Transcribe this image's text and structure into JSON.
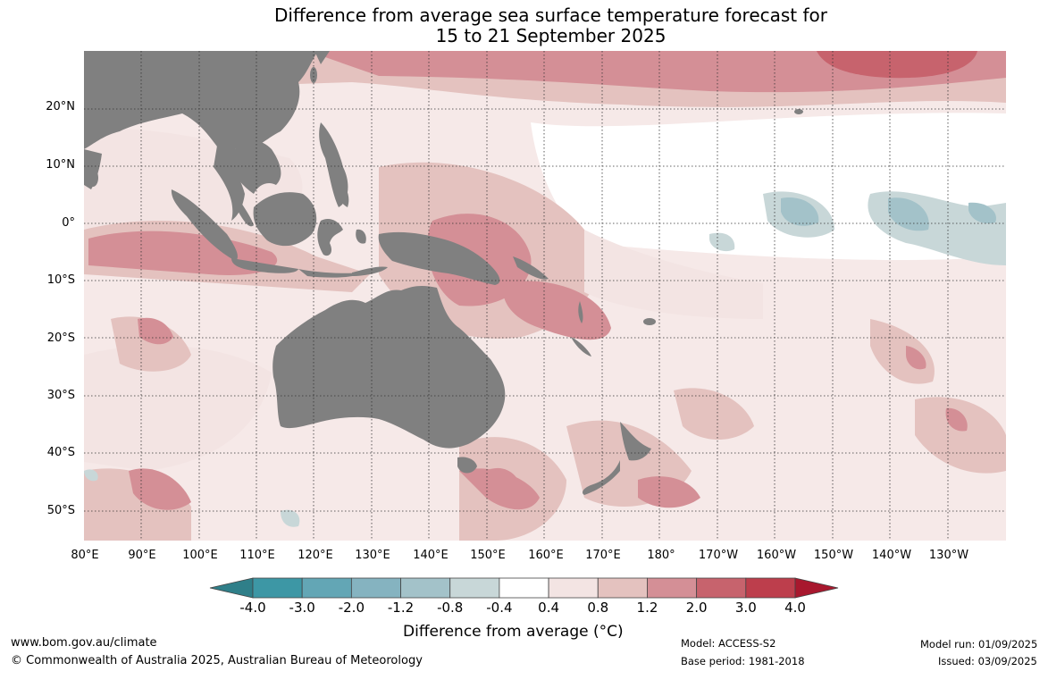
{
  "title": {
    "line1": "Difference from average sea surface temperature forecast for",
    "line2": "15 to 21 September 2025"
  },
  "lat_labels": [
    "20°N",
    "10°N",
    "0°",
    "10°S",
    "20°S",
    "30°S",
    "40°S",
    "50°S"
  ],
  "lon_labels": [
    "80°E",
    "90°E",
    "100°E",
    "110°E",
    "120°E",
    "130°E",
    "140°E",
    "150°E",
    "160°E",
    "170°E",
    "180°",
    "170°W",
    "160°W",
    "150°W",
    "140°W",
    "130°W"
  ],
  "colorbar": {
    "ticks": [
      "-4.0",
      "-3.0",
      "-2.0",
      "-1.2",
      "-0.8",
      "-0.4",
      "0.4",
      "0.8",
      "1.2",
      "2.0",
      "3.0",
      "4.0"
    ],
    "colors": [
      "#3d97a5",
      "#63a6b5",
      "#85b3c0",
      "#a3c2c9",
      "#c8d7d8",
      "#ffffff",
      "#f3e4e3",
      "#e4c2bf",
      "#d48f96",
      "#c7636d",
      "#bd3e4c"
    ],
    "extend_low": "#2f7f89",
    "extend_high": "#a8182e",
    "label": "Difference from average (°C)"
  },
  "land_color": "#808080",
  "footer": {
    "website": "www.bom.gov.au/climate",
    "copyright": "© Commonwealth of Australia 2025, Australian Bureau of Meteorology",
    "model": "Model: ACCESS-S2",
    "base_period": "Base period: 1981-2018",
    "model_run": "Model run: 01/09/2025",
    "issued": "Issued: 03/09/2025"
  }
}
